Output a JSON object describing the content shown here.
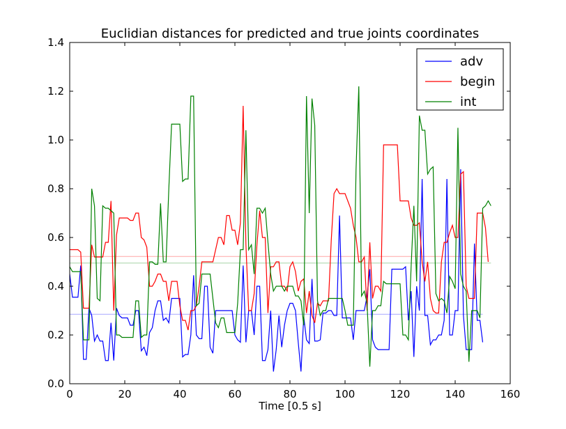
{
  "chart_data": {
    "type": "line",
    "title": "Euclidian distances for predicted and true joints coordinates",
    "xlabel": "Time [0.5 s]",
    "ylabel": "",
    "xlim": [
      0,
      160
    ],
    "ylim": [
      0.0,
      1.4
    ],
    "xticks": [
      "0",
      "20",
      "40",
      "60",
      "80",
      "100",
      "120",
      "140",
      "160"
    ],
    "yticks": [
      "0.0",
      "0.2",
      "0.4",
      "0.6",
      "0.8",
      "1.0",
      "1.2",
      "1.4"
    ],
    "grid": false,
    "legend_position": "top-right",
    "series": [
      {
        "name": "adv",
        "color": "#0000ff",
        "mean": 0.285,
        "values": [
          0.45,
          0.355,
          0.355,
          0.355,
          0.485,
          0.1,
          0.1,
          0.31,
          0.28,
          0.175,
          0.2,
          0.175,
          0.175,
          0.095,
          0.095,
          0.25,
          0.095,
          0.31,
          0.28,
          0.27,
          0.27,
          0.27,
          0.24,
          0.24,
          0.3,
          0.3,
          0.135,
          0.15,
          0.115,
          0.21,
          0.23,
          0.3,
          0.34,
          0.34,
          0.26,
          0.27,
          0.25,
          0.35,
          0.35,
          0.35,
          0.35,
          0.11,
          0.12,
          0.12,
          0.2,
          0.445,
          0.2,
          0.185,
          0.185,
          0.4,
          0.4,
          0.15,
          0.125,
          0.3,
          0.3,
          0.3,
          0.3,
          0.3,
          0.3,
          0.3,
          0.2,
          0.18,
          0.17,
          0.485,
          0.17,
          0.3,
          0.3,
          0.2,
          0.4,
          0.4,
          0.095,
          0.095,
          0.14,
          0.3,
          0.05,
          0.14,
          0.28,
          0.15,
          0.24,
          0.3,
          0.33,
          0.33,
          0.3,
          0.17,
          0.05,
          0.275,
          0.18,
          0.165,
          0.43,
          0.175,
          0.175,
          0.18,
          0.29,
          0.29,
          0.3,
          0.3,
          0.28,
          0.28,
          0.69,
          0.27,
          0.27,
          0.27,
          0.27,
          0.18,
          0.3,
          0.3,
          0.3,
          0.3,
          0.36,
          0.47,
          0.18,
          0.15,
          0.14,
          0.14,
          0.14,
          0.14,
          0.14,
          0.47,
          0.47,
          0.47,
          0.47,
          0.47,
          0.48,
          0.26,
          0.38,
          0.11,
          0.4,
          0.3,
          0.84,
          0.28,
          0.28,
          0.16,
          0.18,
          0.18,
          0.2,
          0.2,
          0.26,
          0.84,
          0.2,
          0.2,
          0.3,
          0.3,
          0.88,
          0.28,
          0.14,
          0.14,
          0.14,
          0.575,
          0.26,
          0.26,
          0.17
        ]
      },
      {
        "name": "begin",
        "color": "#ff0000",
        "mean": 0.522,
        "values": [
          0.55,
          0.55,
          0.55,
          0.55,
          0.54,
          0.31,
          0.31,
          0.31,
          0.57,
          0.52,
          0.52,
          0.52,
          0.52,
          0.58,
          0.58,
          0.75,
          0.3,
          0.61,
          0.68,
          0.68,
          0.68,
          0.68,
          0.67,
          0.67,
          0.7,
          0.7,
          0.6,
          0.59,
          0.56,
          0.4,
          0.4,
          0.42,
          0.45,
          0.45,
          0.42,
          0.42,
          0.34,
          0.42,
          0.42,
          0.42,
          0.32,
          0.26,
          0.26,
          0.22,
          0.3,
          0.3,
          0.32,
          0.4,
          0.5,
          0.5,
          0.5,
          0.5,
          0.5,
          0.55,
          0.6,
          0.6,
          0.57,
          0.69,
          0.69,
          0.63,
          0.63,
          0.57,
          0.66,
          1.14,
          0.57,
          0.3,
          0.3,
          0.37,
          0.57,
          0.71,
          0.6,
          0.6,
          0.29,
          0.48,
          0.48,
          0.5,
          0.5,
          0.4,
          0.4,
          0.38,
          0.48,
          0.5,
          0.46,
          0.38,
          0.42,
          0.43,
          0.29,
          0.38,
          0.28,
          0.25,
          0.33,
          0.32,
          0.34,
          0.34,
          0.34,
          0.59,
          0.78,
          0.8,
          0.78,
          0.78,
          0.78,
          0.75,
          0.72,
          0.65,
          0.6,
          0.5,
          0.5,
          0.52,
          0.3,
          0.58,
          0.35,
          0.4,
          0.4,
          0.38,
          0.98,
          0.98,
          0.98,
          0.98,
          0.98,
          0.98,
          0.75,
          0.75,
          0.75,
          0.75,
          0.68,
          0.65,
          0.65,
          0.66,
          0.5,
          0.42,
          0.5,
          0.35,
          0.3,
          0.29,
          0.29,
          0.5,
          0.58,
          0.58,
          0.62,
          0.65,
          0.6,
          0.6,
          0.86,
          0.87,
          0.4,
          0.35,
          0.35,
          0.35,
          0.7,
          0.7,
          0.7,
          0.64,
          0.5
        ]
      },
      {
        "name": "int",
        "color": "#008000",
        "mean": 0.495,
        "values": [
          0.48,
          0.46,
          0.46,
          0.46,
          0.46,
          0.18,
          0.18,
          0.18,
          0.8,
          0.73,
          0.35,
          0.34,
          0.73,
          0.72,
          0.72,
          0.71,
          0.7,
          0.2,
          0.2,
          0.19,
          0.19,
          0.19,
          0.19,
          0.19,
          0.34,
          0.34,
          0.19,
          0.2,
          0.2,
          0.5,
          0.5,
          0.49,
          0.49,
          0.74,
          0.5,
          0.5,
          0.8,
          1.065,
          1.065,
          1.065,
          1.065,
          0.83,
          0.84,
          0.84,
          1.18,
          1.18,
          0.32,
          0.33,
          0.45,
          0.45,
          0.45,
          0.45,
          0.35,
          0.25,
          0.23,
          0.27,
          0.27,
          0.21,
          0.21,
          0.21,
          0.21,
          0.33,
          0.55,
          0.55,
          1.04,
          0.55,
          0.57,
          0.45,
          0.72,
          0.72,
          0.7,
          0.72,
          0.58,
          0.45,
          0.38,
          0.4,
          0.4,
          0.4,
          0.38,
          0.4,
          0.4,
          0.4,
          0.36,
          0.36,
          0.34,
          0.24,
          1.18,
          0.7,
          1.17,
          1.06,
          0.34,
          0.28,
          0.3,
          0.3,
          0.35,
          0.35,
          0.35,
          0.35,
          0.35,
          0.35,
          0.3,
          0.24,
          0.24,
          0.24,
          0.88,
          1.22,
          0.36,
          0.38,
          0.33,
          0.07,
          0.3,
          0.3,
          0.32,
          0.32,
          0.42,
          0.41,
          0.41,
          0.41,
          0.41,
          0.41,
          0.41,
          0.2,
          0.2,
          0.18,
          0.48,
          0.73,
          0.42,
          1.1,
          1.04,
          1.04,
          0.86,
          0.88,
          0.89,
          0.37,
          0.34,
          0.35,
          0.34,
          0.29,
          0.44,
          0.42,
          0.39,
          1.05,
          0.45,
          0.4,
          0.38,
          0.09,
          0.3,
          0.3,
          0.3,
          0.27,
          0.72,
          0.73,
          0.75,
          0.73
        ]
      }
    ]
  }
}
